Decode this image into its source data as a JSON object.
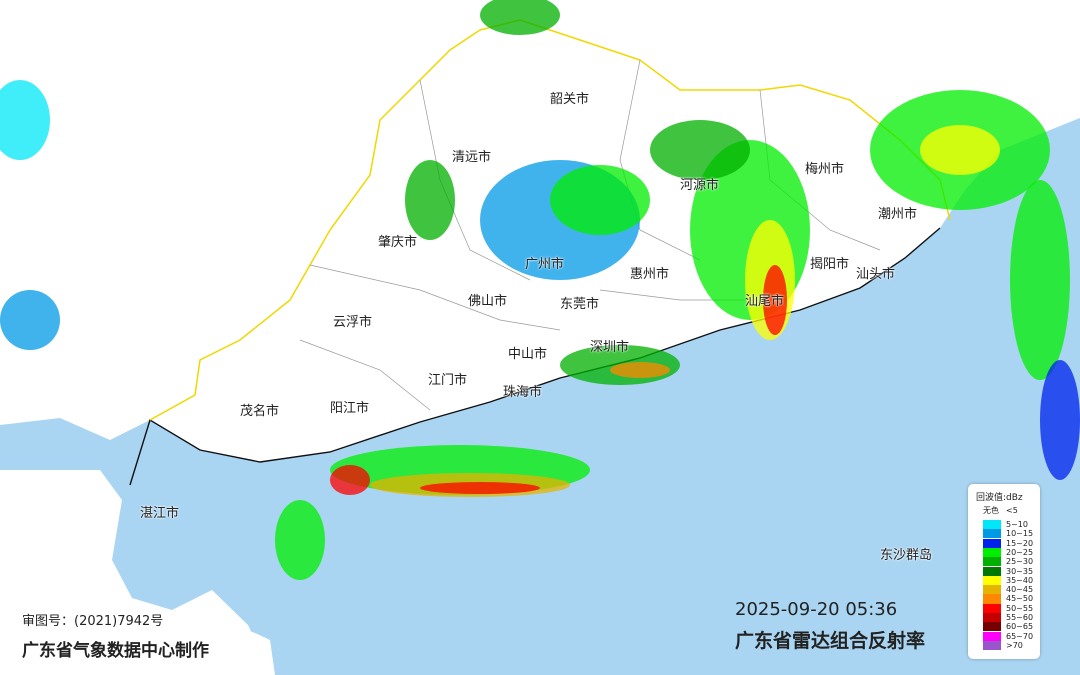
{
  "map": {
    "title": "广东省雷达组合反射率",
    "timestamp": "2025-09-20 05:36",
    "approval_number": "审图号：(2021)7942号",
    "maker": "广东省气象数据中心制作",
    "colors": {
      "land": "#ffffff",
      "sea": "#a9d5f2",
      "province_border": "#f0d800",
      "coast": "#111111"
    },
    "cities": [
      {
        "name": "韶关市"
      },
      {
        "name": "清远市"
      },
      {
        "name": "河源市"
      },
      {
        "name": "梅州市"
      },
      {
        "name": "潮州市"
      },
      {
        "name": "肇庆市"
      },
      {
        "name": "广州市"
      },
      {
        "name": "惠州市"
      },
      {
        "name": "揭阳市"
      },
      {
        "name": "汕头市"
      },
      {
        "name": "佛山市"
      },
      {
        "name": "东莞市"
      },
      {
        "name": "汕尾市"
      },
      {
        "name": "云浮市"
      },
      {
        "name": "深圳市"
      },
      {
        "name": "中山市"
      },
      {
        "name": "江门市"
      },
      {
        "name": "珠海市"
      },
      {
        "name": "茂名市"
      },
      {
        "name": "阳江市"
      },
      {
        "name": "湛江市"
      },
      {
        "name": "东沙群岛"
      }
    ]
  },
  "legend": {
    "title": "回波值:dBz",
    "none_label": "无色",
    "none_range": "<5",
    "items": [
      {
        "range": "5~10",
        "color": "#00e8f8"
      },
      {
        "range": "10~15",
        "color": "#0099e6"
      },
      {
        "range": "15~20",
        "color": "#0022ee"
      },
      {
        "range": "20~25",
        "color": "#00ee00"
      },
      {
        "range": "25~30",
        "color": "#00b000"
      },
      {
        "range": "30~35",
        "color": "#007800"
      },
      {
        "range": "35~40",
        "color": "#ffff00"
      },
      {
        "range": "40~45",
        "color": "#e6b400"
      },
      {
        "range": "45~50",
        "color": "#ff8800"
      },
      {
        "range": "50~55",
        "color": "#ff0000"
      },
      {
        "range": "55~60",
        "color": "#c40000"
      },
      {
        "range": "60~65",
        "color": "#760000"
      },
      {
        "range": "65~70",
        "color": "#ff00ff"
      },
      {
        "range": ">70",
        "color": "#9955cc"
      }
    ]
  }
}
